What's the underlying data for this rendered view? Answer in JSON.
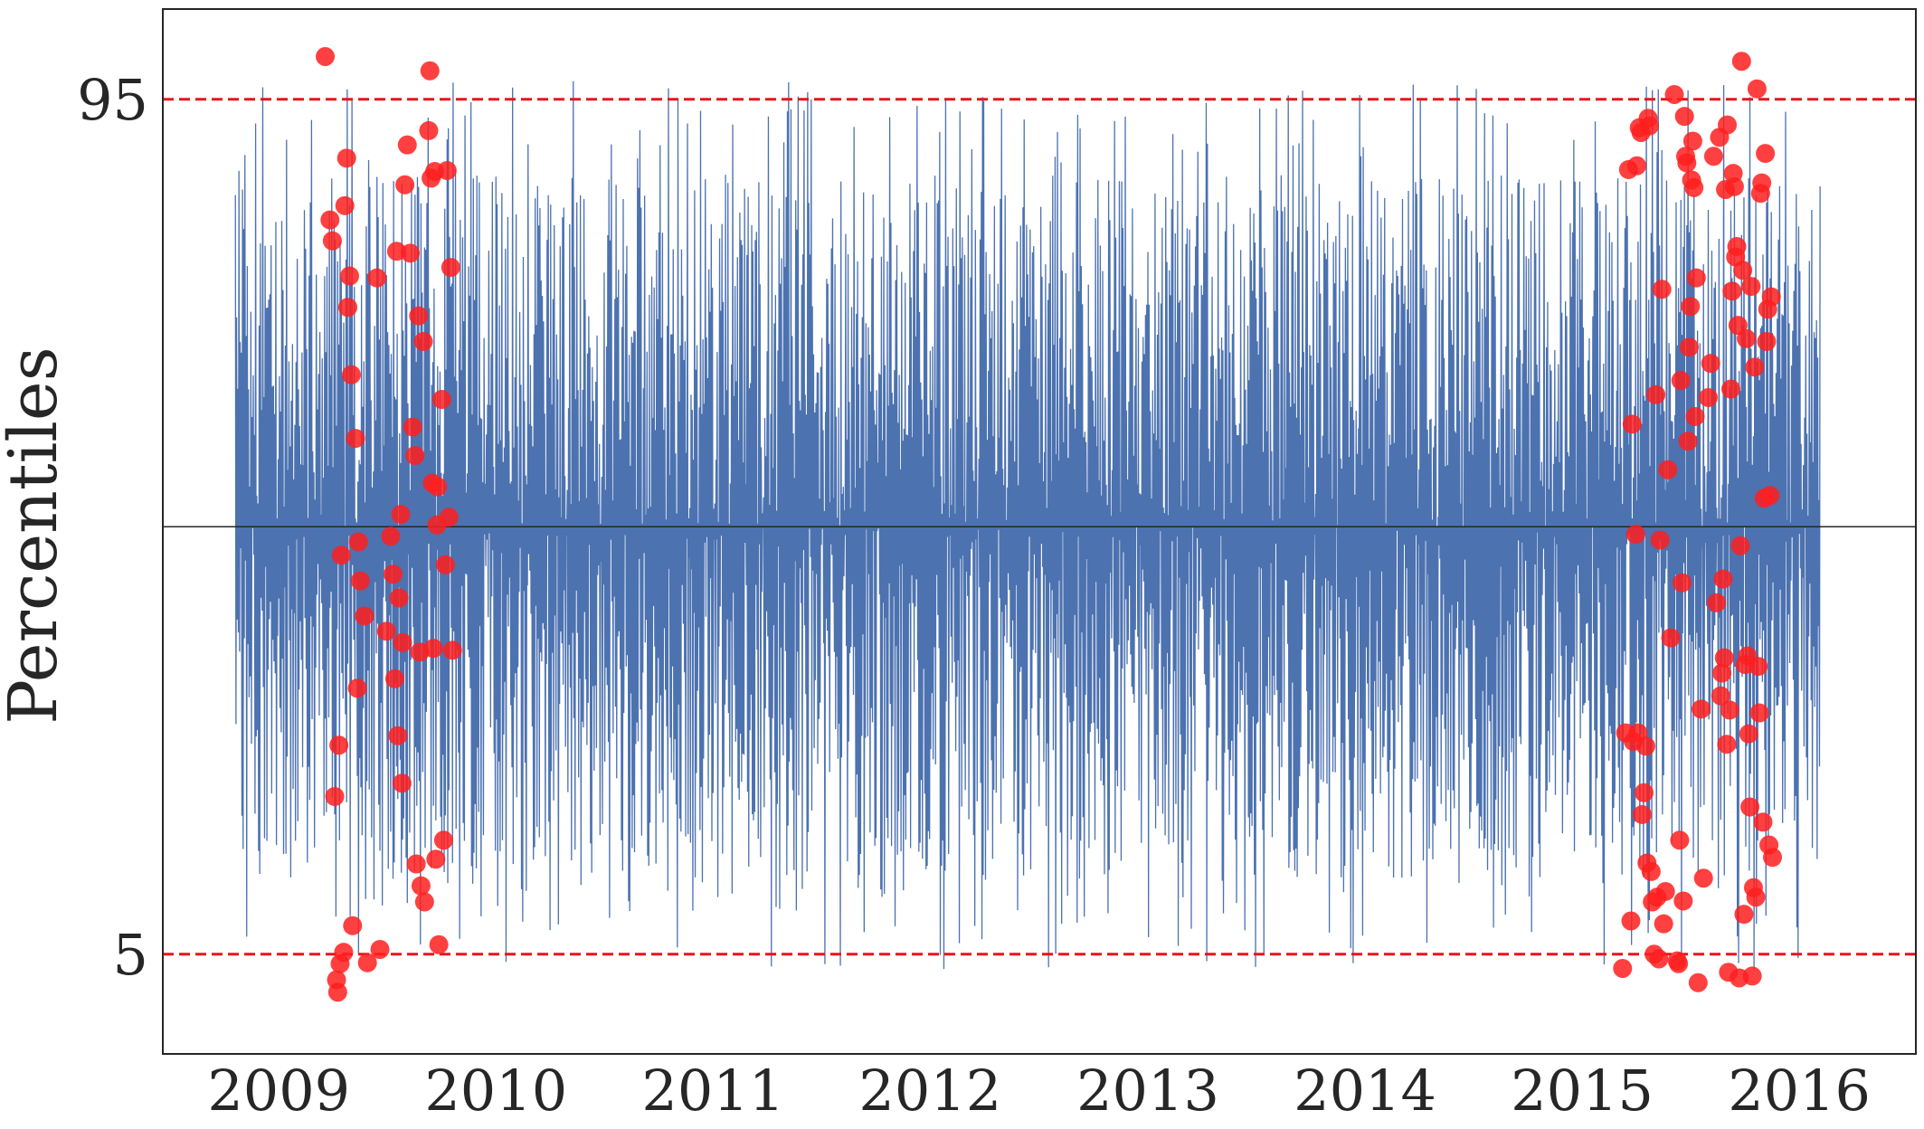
{
  "chart_data": {
    "type": "line",
    "title": "",
    "xlabel": "",
    "ylabel": "Percentiles",
    "x_tick_labels": [
      "2009",
      "2010",
      "2011",
      "2012",
      "2013",
      "2014",
      "2015",
      "2016"
    ],
    "y_tick_labels": [
      "95",
      "5"
    ],
    "xlim": [
      "2008-06-20",
      "2016-07-15"
    ],
    "ylim": [
      -5.5,
      104.5
    ],
    "x_range": [
      "2008-10-20",
      "2016-02-05"
    ],
    "y_range_of_series": [
      0,
      100
    ],
    "grid": false,
    "legend": "none",
    "reference_lines": [
      {
        "y": 95,
        "style": "dashed",
        "color": "#e8141c"
      },
      {
        "y": 5,
        "style": "dashed",
        "color": "#e8141c"
      },
      {
        "y": 50,
        "style": "solid",
        "color": "#262626"
      }
    ],
    "series": [
      {
        "kind": "line",
        "color": "#4c72b0",
        "description_values": "daily percentile values oscillating between roughly 0 and 100 from late 2008 to early 2016"
      },
      {
        "kind": "scatter",
        "color": "#ff1f1f",
        "points": [
          [
            "2009-03-20",
            99.5
          ],
          [
            "2009-03-28",
            82.3
          ],
          [
            "2009-04-01",
            80.1
          ],
          [
            "2009-04-05",
            21.6
          ],
          [
            "2009-04-08",
            2.3
          ],
          [
            "2009-04-10",
            1.0
          ],
          [
            "2009-04-12",
            27.0
          ],
          [
            "2009-04-14",
            4.0
          ],
          [
            "2009-04-16",
            47.0
          ],
          [
            "2009-04-20",
            5.2
          ],
          [
            "2009-04-22",
            83.8
          ],
          [
            "2009-04-25",
            88.8
          ],
          [
            "2009-04-27",
            73.1
          ],
          [
            "2009-04-30",
            76.4
          ],
          [
            "2009-05-03",
            66.0
          ],
          [
            "2009-05-05",
            8.0
          ],
          [
            "2009-05-10",
            59.3
          ],
          [
            "2009-05-13",
            33.0
          ],
          [
            "2009-05-15",
            48.4
          ],
          [
            "2009-05-18",
            44.3
          ],
          [
            "2009-05-25",
            40.6
          ],
          [
            "2009-05-30",
            4.1
          ],
          [
            "2009-06-15",
            76.2
          ],
          [
            "2009-06-20",
            5.5
          ],
          [
            "2009-07-01",
            39.0
          ],
          [
            "2009-07-08",
            49.0
          ],
          [
            "2009-07-12",
            45.0
          ],
          [
            "2009-07-15",
            34.0
          ],
          [
            "2009-07-18",
            79.0
          ],
          [
            "2009-07-20",
            28.0
          ],
          [
            "2009-07-22",
            42.5
          ],
          [
            "2009-07-25",
            51.3
          ],
          [
            "2009-07-27",
            23.0
          ],
          [
            "2009-07-28",
            37.8
          ],
          [
            "2009-08-01",
            86.0
          ],
          [
            "2009-08-05",
            90.2
          ],
          [
            "2009-08-10",
            78.8
          ],
          [
            "2009-08-14",
            60.5
          ],
          [
            "2009-08-18",
            57.5
          ],
          [
            "2009-08-20",
            14.5
          ],
          [
            "2009-08-24",
            72.2
          ],
          [
            "2009-08-26",
            36.8
          ],
          [
            "2009-08-28",
            12.2
          ],
          [
            "2009-09-01",
            69.5
          ],
          [
            "2009-09-03",
            10.5
          ],
          [
            "2009-09-10",
            91.7
          ],
          [
            "2009-09-12",
            98.0
          ],
          [
            "2009-09-14",
            86.7
          ],
          [
            "2009-09-16",
            54.6
          ],
          [
            "2009-09-18",
            37.2
          ],
          [
            "2009-09-20",
            87.4
          ],
          [
            "2009-09-22",
            15.0
          ],
          [
            "2009-09-24",
            50.2
          ],
          [
            "2009-09-25",
            54.2
          ],
          [
            "2009-09-27",
            6.0
          ],
          [
            "2009-10-02",
            63.4
          ],
          [
            "2009-10-05",
            17.0
          ],
          [
            "2009-10-08",
            46.0
          ],
          [
            "2009-10-11",
            87.5
          ],
          [
            "2009-10-14",
            51.0
          ],
          [
            "2009-10-17",
            77.3
          ],
          [
            "2009-10-20",
            37.0
          ],
          [
            "2015-03-10",
            3.5
          ],
          [
            "2015-03-15",
            28.3
          ],
          [
            "2015-03-20",
            87.6
          ],
          [
            "2015-03-24",
            8.5
          ],
          [
            "2015-03-26",
            60.8
          ],
          [
            "2015-03-28",
            27.4
          ],
          [
            "2015-04-01",
            49.2
          ],
          [
            "2015-04-03",
            88.0
          ],
          [
            "2015-04-05",
            28.3
          ],
          [
            "2015-04-07",
            92.0
          ],
          [
            "2015-04-10",
            91.5
          ],
          [
            "2015-04-12",
            19.7
          ],
          [
            "2015-04-15",
            22.0
          ],
          [
            "2015-04-18",
            26.9
          ],
          [
            "2015-04-20",
            14.6
          ],
          [
            "2015-04-22",
            93.0
          ],
          [
            "2015-04-24",
            92.2
          ],
          [
            "2015-04-27",
            13.7
          ],
          [
            "2015-04-29",
            10.5
          ],
          [
            "2015-05-02",
            5.0
          ],
          [
            "2015-05-05",
            63.9
          ],
          [
            "2015-05-07",
            11.0
          ],
          [
            "2015-05-10",
            4.5
          ],
          [
            "2015-05-12",
            48.6
          ],
          [
            "2015-05-15",
            75.0
          ],
          [
            "2015-05-18",
            8.2
          ],
          [
            "2015-05-21",
            11.6
          ],
          [
            "2015-05-25",
            56.0
          ],
          [
            "2015-05-30",
            38.3
          ],
          [
            "2015-06-05",
            95.5
          ],
          [
            "2015-06-10",
            4.3
          ],
          [
            "2015-06-12",
            4.0
          ],
          [
            "2015-06-14",
            17.0
          ],
          [
            "2015-06-16",
            65.4
          ],
          [
            "2015-06-18",
            44.1
          ],
          [
            "2015-06-20",
            10.6
          ],
          [
            "2015-06-22",
            93.2
          ],
          [
            "2015-06-24",
            89.0
          ],
          [
            "2015-06-26",
            88.3
          ],
          [
            "2015-06-28",
            59.0
          ],
          [
            "2015-06-30",
            68.9
          ],
          [
            "2015-07-02",
            73.2
          ],
          [
            "2015-07-04",
            86.5
          ],
          [
            "2015-07-06",
            90.6
          ],
          [
            "2015-07-08",
            85.7
          ],
          [
            "2015-07-10",
            61.6
          ],
          [
            "2015-07-12",
            76.2
          ],
          [
            "2015-07-15",
            2.0
          ],
          [
            "2015-07-20",
            30.8
          ],
          [
            "2015-07-24",
            13.0
          ],
          [
            "2015-08-01",
            63.6
          ],
          [
            "2015-08-05",
            67.2
          ],
          [
            "2015-08-10",
            89.0
          ],
          [
            "2015-08-15",
            42.0
          ],
          [
            "2015-08-20",
            91.0
          ],
          [
            "2015-08-22",
            32.2
          ],
          [
            "2015-08-24",
            34.6
          ],
          [
            "2015-08-26",
            44.5
          ],
          [
            "2015-08-28",
            36.2
          ],
          [
            "2015-08-30",
            85.5
          ],
          [
            "2015-09-01",
            27.1
          ],
          [
            "2015-09-02",
            92.3
          ],
          [
            "2015-09-04",
            3.1
          ],
          [
            "2015-09-06",
            30.7
          ],
          [
            "2015-09-08",
            64.5
          ],
          [
            "2015-09-10",
            74.8
          ],
          [
            "2015-09-12",
            87.2
          ],
          [
            "2015-09-14",
            85.8
          ],
          [
            "2015-09-16",
            78.4
          ],
          [
            "2015-09-18",
            79.5
          ],
          [
            "2015-09-20",
            71.2
          ],
          [
            "2015-09-22",
            2.5
          ],
          [
            "2015-09-24",
            48.0
          ],
          [
            "2015-09-26",
            99.0
          ],
          [
            "2015-09-28",
            77.0
          ],
          [
            "2015-09-30",
            9.2
          ],
          [
            "2015-10-02",
            35.5
          ],
          [
            "2015-10-04",
            69.8
          ],
          [
            "2015-10-06",
            36.4
          ],
          [
            "2015-10-08",
            28.2
          ],
          [
            "2015-10-10",
            20.5
          ],
          [
            "2015-10-12",
            75.3
          ],
          [
            "2015-10-14",
            2.7
          ],
          [
            "2015-10-16",
            12.0
          ],
          [
            "2015-10-18",
            66.8
          ],
          [
            "2015-10-20",
            11.0
          ],
          [
            "2015-10-22",
            96.1
          ],
          [
            "2015-10-24",
            35.3
          ],
          [
            "2015-10-26",
            30.4
          ],
          [
            "2015-10-28",
            85.1
          ],
          [
            "2015-10-30",
            86.2
          ],
          [
            "2015-11-01",
            18.9
          ],
          [
            "2015-11-03",
            53.0
          ],
          [
            "2015-11-05",
            89.3
          ],
          [
            "2015-11-07",
            69.5
          ],
          [
            "2015-11-09",
            72.9
          ],
          [
            "2015-11-11",
            16.5
          ],
          [
            "2015-11-13",
            53.3
          ],
          [
            "2015-11-15",
            74.2
          ],
          [
            "2015-11-17",
            15.2
          ]
        ]
      }
    ]
  }
}
